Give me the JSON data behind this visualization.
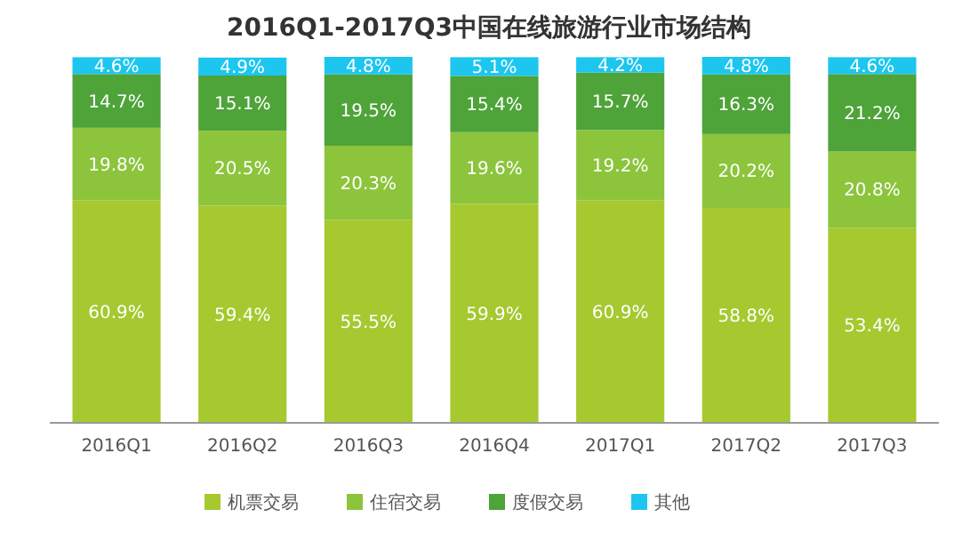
{
  "chart_data": {
    "type": "bar",
    "title": "2016Q1-2017Q3中国在线旅游行业市场结构",
    "categories": [
      "2016Q1",
      "2016Q2",
      "2016Q3",
      "2016Q4",
      "2017Q1",
      "2017Q2",
      "2017Q3"
    ],
    "stacked": true,
    "legend": "bottom",
    "series": [
      {
        "name": "机票交易",
        "color": "#a5c92f",
        "values": [
          60.9,
          59.4,
          55.5,
          59.9,
          60.9,
          58.8,
          53.4
        ],
        "value_labels": [
          "60.9%",
          "59.4%",
          "55.5%",
          "59.9%",
          "60.9%",
          "58.8%",
          "53.4%"
        ]
      },
      {
        "name": "住宿交易",
        "color": "#8cc43c",
        "values": [
          19.8,
          20.5,
          20.3,
          19.6,
          19.2,
          20.2,
          20.8
        ],
        "value_labels": [
          "19.8%",
          "20.5%",
          "20.3%",
          "19.6%",
          "19.2%",
          "20.2%",
          "20.8%"
        ]
      },
      {
        "name": "度假交易",
        "color": "#4ea339",
        "values": [
          14.7,
          15.1,
          19.5,
          15.4,
          15.7,
          16.3,
          21.2
        ],
        "value_labels": [
          "14.7%",
          "15.1%",
          "19.5%",
          "15.4%",
          "15.7%",
          "16.3%",
          "21.2%"
        ]
      },
      {
        "name": "其他",
        "color": "#1cc6ef",
        "values": [
          4.6,
          4.9,
          4.8,
          5.1,
          4.2,
          4.8,
          4.6
        ],
        "value_labels": [
          "4.6%",
          "4.9%",
          "4.8%",
          "5.1%",
          "4.2%",
          "4.8%",
          "4.6%"
        ]
      }
    ]
  }
}
